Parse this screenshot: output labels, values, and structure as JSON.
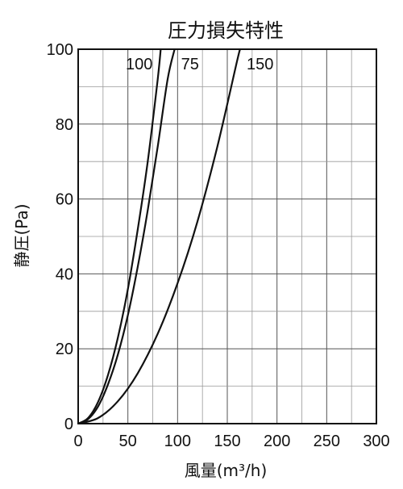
{
  "chart_data": {
    "type": "line",
    "title": "圧力損失特性",
    "xlabel": "風量(m³/h)",
    "ylabel": "静圧(Pa)",
    "xlim": [
      0,
      300
    ],
    "ylim": [
      0,
      100
    ],
    "x_ticks": [
      "0",
      "50",
      "100",
      "150",
      "200",
      "250",
      "300"
    ],
    "y_ticks": [
      "0",
      "20",
      "40",
      "60",
      "80",
      "100"
    ],
    "grid": true,
    "series": [
      {
        "name": "100",
        "x": [
          0,
          10,
          20,
          30,
          40,
          50,
          60,
          70,
          80,
          83
        ],
        "y": [
          0,
          1.5,
          5.8,
          13,
          23,
          36,
          52,
          70,
          92,
          100
        ]
      },
      {
        "name": "75",
        "x": [
          0,
          10,
          20,
          30,
          40,
          50,
          60,
          70,
          80,
          90,
          97
        ],
        "y": [
          0,
          1.2,
          4.6,
          10.5,
          18.5,
          29,
          42,
          57,
          74,
          92,
          100
        ]
      },
      {
        "name": "150",
        "x": [
          0,
          20,
          40,
          60,
          80,
          100,
          120,
          140,
          160,
          163
        ],
        "y": [
          0,
          1.5,
          6,
          13.5,
          24,
          37.5,
          54,
          74,
          97,
          100
        ]
      }
    ]
  }
}
